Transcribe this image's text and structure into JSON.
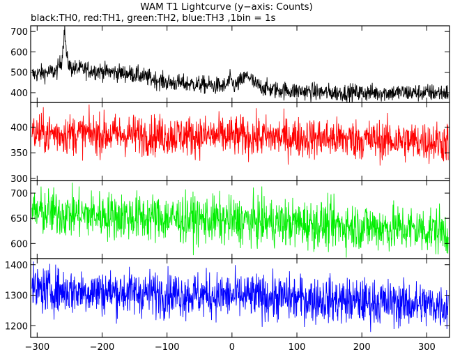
{
  "chart_data": {
    "type": "line",
    "title": "WAM T1 Lightcurve (y−axis: Counts)",
    "subtitle": "black:TH0, red:TH1, green:TH2, blue:TH3 ,1bin = 1s",
    "xlim": [
      -310,
      335
    ],
    "x_ticks": [
      -300,
      -200,
      -100,
      0,
      100,
      200,
      300
    ],
    "x_tick_labels": [
      "−300",
      "−200",
      "−100",
      "0",
      "100",
      "200",
      "300"
    ],
    "grid": false,
    "panels": [
      {
        "color": "#000000",
        "ylim": [
          352,
          728
        ],
        "y_ticks": [
          400,
          500,
          600,
          700
        ],
        "knots": [
          [
            -305,
            490
          ],
          [
            -270,
            505
          ],
          [
            -262,
            560
          ],
          [
            -258,
            710
          ],
          [
            -254,
            560
          ],
          [
            -248,
            520
          ],
          [
            -200,
            505
          ],
          [
            -150,
            490
          ],
          [
            -100,
            450
          ],
          [
            -50,
            440
          ],
          [
            -10,
            430
          ],
          [
            -3,
            462
          ],
          [
            5,
            432
          ],
          [
            15,
            460
          ],
          [
            25,
            485
          ],
          [
            35,
            440
          ],
          [
            60,
            415
          ],
          [
            150,
            400
          ],
          [
            250,
            400
          ],
          [
            335,
            400
          ]
        ],
        "noise_amplitude": 22
      },
      {
        "color": "#ff0000",
        "ylim": [
          296,
          448
        ],
        "y_ticks": [
          300,
          350,
          400
        ],
        "knots": [
          [
            -305,
            388
          ],
          [
            -100,
            384
          ],
          [
            100,
            380
          ],
          [
            335,
            370
          ]
        ],
        "noise_amplitude": 20
      },
      {
        "color": "#00ee00",
        "ylim": [
          570,
          725
        ],
        "y_ticks": [
          600,
          650,
          700
        ],
        "knots": [
          [
            -305,
            662
          ],
          [
            -100,
            650
          ],
          [
            100,
            640
          ],
          [
            335,
            625
          ]
        ],
        "noise_amplitude": 24
      },
      {
        "color": "#0000ff",
        "ylim": [
          1162,
          1420
        ],
        "y_ticks": [
          1200,
          1300,
          1400
        ],
        "knots": [
          [
            -305,
            1318
          ],
          [
            -100,
            1305
          ],
          [
            100,
            1290
          ],
          [
            335,
            1265
          ]
        ],
        "noise_amplitude": 38
      }
    ]
  }
}
